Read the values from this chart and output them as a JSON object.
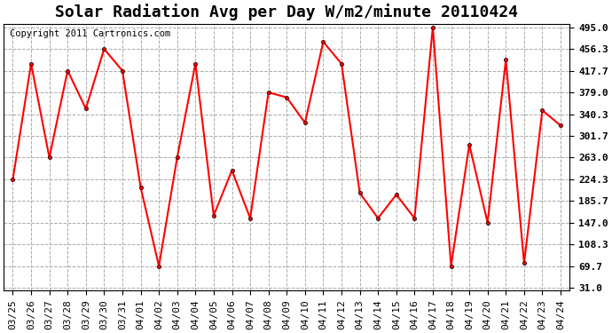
{
  "title": "Solar Radiation Avg per Day W/m2/minute 20110424",
  "copyright": "Copyright 2011 Cartronics.com",
  "labels": [
    "03/25",
    "03/26",
    "03/27",
    "03/28",
    "03/29",
    "03/30",
    "03/31",
    "04/01",
    "04/02",
    "04/03",
    "04/04",
    "04/05",
    "04/06",
    "04/07",
    "04/08",
    "04/09",
    "04/10",
    "04/11",
    "04/12",
    "04/13",
    "04/14",
    "04/15",
    "04/16",
    "04/17",
    "04/18",
    "04/19",
    "04/20",
    "04/21",
    "04/22",
    "04/23",
    "04/24"
  ],
  "values": [
    224.3,
    430.0,
    263.0,
    417.7,
    350.0,
    456.3,
    417.7,
    210.0,
    69.7,
    263.0,
    430.0,
    160.0,
    240.0,
    155.0,
    379.0,
    370.0,
    325.0,
    469.0,
    430.0,
    200.0,
    155.0,
    197.0,
    155.0,
    495.0,
    69.7,
    286.0,
    147.0,
    437.0,
    75.0,
    347.0,
    320.0
  ],
  "ymin": 31.0,
  "ymax": 495.0,
  "yticks": [
    31.0,
    69.7,
    108.3,
    147.0,
    185.7,
    224.3,
    263.0,
    301.7,
    340.3,
    379.0,
    417.7,
    456.3,
    495.0
  ],
  "line_color": "red",
  "marker_color": "black",
  "bg_color": "white",
  "plot_bg_color": "white",
  "grid_color": "#aaaaaa",
  "title_fontsize": 13,
  "copyright_fontsize": 7.5,
  "tick_fontsize": 8,
  "marker_size": 3,
  "line_width": 1.5
}
